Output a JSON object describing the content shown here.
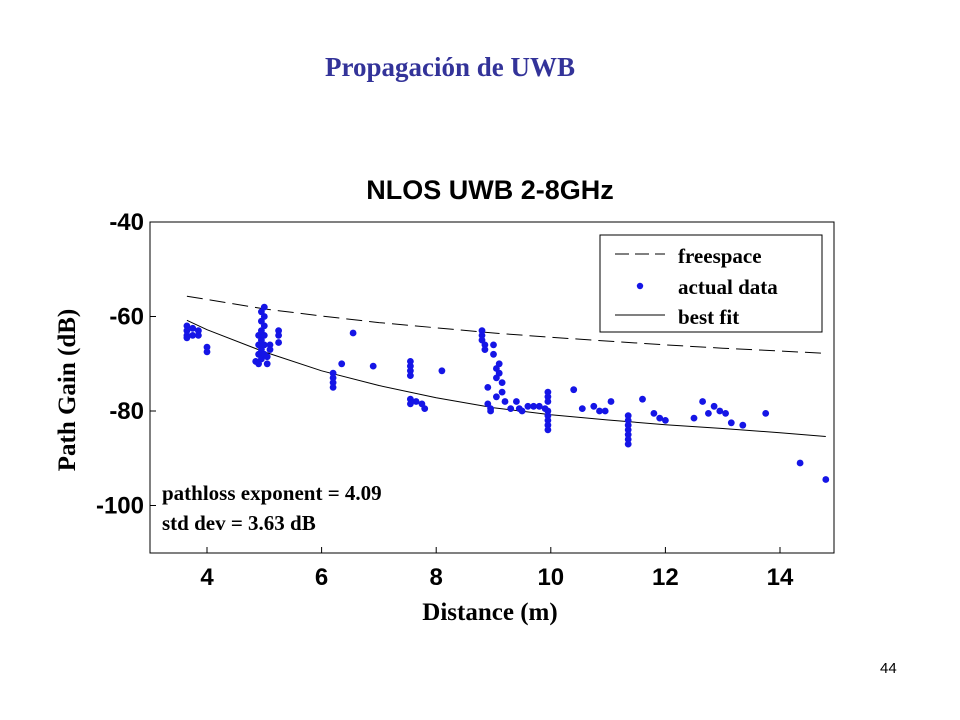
{
  "slide": {
    "title": "Propagación de UWB",
    "page_number": "44"
  },
  "colors": {
    "title": "#333399",
    "points": "#1515e6",
    "lines": "#000000"
  },
  "chart_data": {
    "type": "scatter",
    "title": "NLOS UWB 2-8GHz",
    "xlabel": "Distance (m)",
    "ylabel": "Path Gain (dB)",
    "xlim": [
      3,
      15
    ],
    "ylim": [
      -110,
      -40
    ],
    "xticks": [
      4,
      6,
      8,
      10,
      12,
      14
    ],
    "yticks": [
      -40,
      -60,
      -80,
      -100
    ],
    "xtick_labels": [
      "4",
      "6",
      "8",
      "10",
      "12",
      "14"
    ],
    "ytick_labels": [
      "-40",
      "-60",
      "-80",
      "-100"
    ],
    "grid": false,
    "legend_position": "top-right",
    "legend": [
      {
        "label": "freespace",
        "style": "dashed line"
      },
      {
        "label": "actual data",
        "style": "dot"
      },
      {
        "label": "best fit",
        "style": "solid line"
      }
    ],
    "annotations": [
      "pathloss exponent = 4.09",
      "std dev = 3.63 dB"
    ],
    "series": [
      {
        "name": "freespace",
        "kind": "line",
        "x": [
          3.65,
          5,
          6,
          7,
          8,
          9,
          10,
          11,
          12,
          13,
          14,
          14.8
        ],
        "y": [
          -55.7,
          -58.4,
          -59.9,
          -61.3,
          -62.4,
          -63.5,
          -64.4,
          -65.2,
          -66.0,
          -66.7,
          -67.3,
          -67.8
        ]
      },
      {
        "name": "actual data",
        "kind": "scatter",
        "points": [
          [
            3.65,
            -62
          ],
          [
            3.65,
            -63
          ],
          [
            3.65,
            -64
          ],
          [
            3.65,
            -64.5
          ],
          [
            3.75,
            -62.5
          ],
          [
            3.75,
            -64
          ],
          [
            3.85,
            -63
          ],
          [
            3.85,
            -64
          ],
          [
            4.0,
            -66.5
          ],
          [
            4.0,
            -67.5
          ],
          [
            4.85,
            -69.5
          ],
          [
            4.9,
            -64
          ],
          [
            4.9,
            -66
          ],
          [
            4.9,
            -68
          ],
          [
            4.9,
            -70
          ],
          [
            4.95,
            -59
          ],
          [
            4.95,
            -61
          ],
          [
            4.95,
            -63
          ],
          [
            4.95,
            -65
          ],
          [
            4.95,
            -67
          ],
          [
            4.95,
            -69
          ],
          [
            5.0,
            -58
          ],
          [
            5.0,
            -60
          ],
          [
            5.0,
            -62
          ],
          [
            5.0,
            -64
          ],
          [
            5.0,
            -66
          ],
          [
            5.0,
            -68
          ],
          [
            5.05,
            -68.5
          ],
          [
            5.05,
            -70
          ],
          [
            5.1,
            -66
          ],
          [
            5.1,
            -67
          ],
          [
            5.25,
            -63
          ],
          [
            5.25,
            -64
          ],
          [
            5.25,
            -65.5
          ],
          [
            6.2,
            -72
          ],
          [
            6.2,
            -73
          ],
          [
            6.2,
            -74
          ],
          [
            6.2,
            -75
          ],
          [
            6.35,
            -70
          ],
          [
            6.55,
            -63.5
          ],
          [
            6.9,
            -70.5
          ],
          [
            7.55,
            -69.5
          ],
          [
            7.55,
            -70.5
          ],
          [
            7.55,
            -71.5
          ],
          [
            7.55,
            -72.5
          ],
          [
            7.55,
            -77.5
          ],
          [
            7.55,
            -78.5
          ],
          [
            7.65,
            -78
          ],
          [
            7.75,
            -78.5
          ],
          [
            7.8,
            -79.5
          ],
          [
            8.1,
            -71.5
          ],
          [
            8.8,
            -63
          ],
          [
            8.8,
            -64
          ],
          [
            8.8,
            -65
          ],
          [
            8.85,
            -66
          ],
          [
            8.85,
            -67
          ],
          [
            8.9,
            -75
          ],
          [
            8.9,
            -78.5
          ],
          [
            8.95,
            -79.5
          ],
          [
            8.95,
            -80
          ],
          [
            9.0,
            -66
          ],
          [
            9.0,
            -68
          ],
          [
            9.05,
            -71
          ],
          [
            9.05,
            -73
          ],
          [
            9.05,
            -77
          ],
          [
            9.1,
            -70
          ],
          [
            9.1,
            -72
          ],
          [
            9.15,
            -74
          ],
          [
            9.15,
            -76
          ],
          [
            9.2,
            -78
          ],
          [
            9.3,
            -79.5
          ],
          [
            9.4,
            -78
          ],
          [
            9.45,
            -79.5
          ],
          [
            9.5,
            -80
          ],
          [
            9.6,
            -79
          ],
          [
            9.7,
            -79
          ],
          [
            9.8,
            -79
          ],
          [
            9.9,
            -79.5
          ],
          [
            9.95,
            -76
          ],
          [
            9.95,
            -77
          ],
          [
            9.95,
            -78
          ],
          [
            9.95,
            -80
          ],
          [
            9.95,
            -81
          ],
          [
            9.95,
            -82
          ],
          [
            9.95,
            -83
          ],
          [
            9.95,
            -84
          ],
          [
            10.4,
            -75.5
          ],
          [
            10.55,
            -79.5
          ],
          [
            10.75,
            -79
          ],
          [
            10.85,
            -80
          ],
          [
            10.95,
            -80
          ],
          [
            11.05,
            -78
          ],
          [
            11.35,
            -81
          ],
          [
            11.35,
            -82
          ],
          [
            11.35,
            -83
          ],
          [
            11.35,
            -84
          ],
          [
            11.35,
            -85
          ],
          [
            11.35,
            -86
          ],
          [
            11.35,
            -87
          ],
          [
            11.6,
            -77.5
          ],
          [
            11.8,
            -80.5
          ],
          [
            11.9,
            -81.5
          ],
          [
            12.0,
            -82
          ],
          [
            12.5,
            -81.5
          ],
          [
            12.65,
            -78
          ],
          [
            12.75,
            -80.5
          ],
          [
            12.85,
            -79
          ],
          [
            12.95,
            -80
          ],
          [
            13.05,
            -80.5
          ],
          [
            13.15,
            -82.5
          ],
          [
            13.35,
            -83
          ],
          [
            13.75,
            -80.5
          ],
          [
            14.35,
            -91
          ],
          [
            14.8,
            -94.5
          ]
        ]
      },
      {
        "name": "best fit",
        "kind": "line",
        "x": [
          3.65,
          4,
          5,
          6,
          7,
          8,
          9,
          10,
          11,
          12,
          13,
          14,
          14.8
        ],
        "y": [
          -60.8,
          -62.8,
          -67.5,
          -71.5,
          -74.6,
          -77.2,
          -79.3,
          -80.8,
          -81.9,
          -82.9,
          -83.7,
          -84.6,
          -85.4
        ]
      }
    ]
  }
}
